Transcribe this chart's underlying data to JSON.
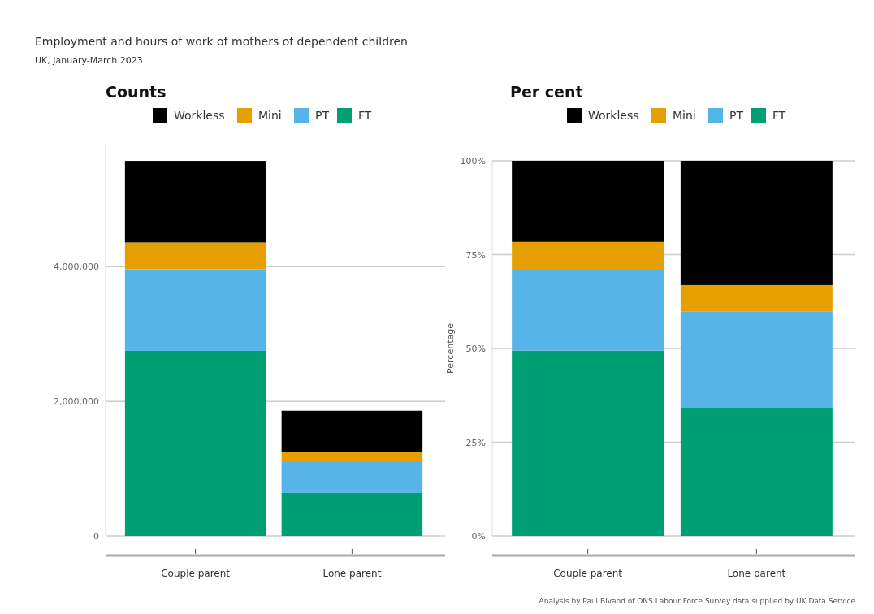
{
  "chart_data": [
    {
      "type": "bar",
      "title": "Counts",
      "annotations": [
        "Employment and hours of work of mothers of dependent children",
        "UK, January-March 2023"
      ],
      "categories": [
        "Couple parent",
        "Lone parent"
      ],
      "stacked": true,
      "legend": "top",
      "grid": "y",
      "ylim": [
        0,
        5800000
      ],
      "yticks": [
        0,
        {
          "value": 2000000,
          "label": "2,000,000"
        },
        {
          "value": 4000000,
          "label": "4,000,000"
        }
      ],
      "series": [
        {
          "name": "FT",
          "color": "#009e73",
          "values": [
            2750000,
            640000
          ]
        },
        {
          "name": "PT",
          "color": "#56b4e9",
          "values": [
            1210000,
            470000
          ]
        },
        {
          "name": "Mini",
          "color": "#e69f00",
          "values": [
            400000,
            140000
          ]
        },
        {
          "name": "Workless",
          "color": "#000000",
          "values": [
            1210000,
            610000
          ]
        }
      ]
    },
    {
      "type": "bar",
      "title": "Per cent",
      "ylabel": "Percentage",
      "annotations": [
        "Analysis by Paul Bivand of ONS Labour Force Survey data supplied by UK Data Service"
      ],
      "categories": [
        "Couple parent",
        "Lone parent"
      ],
      "stacked": true,
      "legend": "top",
      "grid": "y",
      "ylim": [
        0,
        100
      ],
      "yticks": [
        {
          "value": 0,
          "label": "0%"
        },
        {
          "value": 25,
          "label": "25%"
        },
        {
          "value": 50,
          "label": "50%"
        },
        {
          "value": 75,
          "label": "75%"
        },
        {
          "value": 100,
          "label": "100%"
        }
      ],
      "series": [
        {
          "name": "FT",
          "color": "#009e73",
          "values": [
            49.4,
            34.2
          ]
        },
        {
          "name": "PT",
          "color": "#56b4e9",
          "values": [
            21.8,
            25.6
          ]
        },
        {
          "name": "Mini",
          "color": "#e69f00",
          "values": [
            7.2,
            7.1
          ]
        },
        {
          "name": "Workless",
          "color": "#000000",
          "values": [
            21.6,
            33.1
          ]
        }
      ]
    }
  ]
}
